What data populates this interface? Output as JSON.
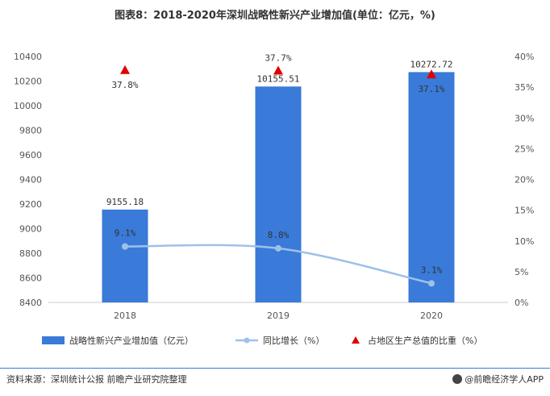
{
  "title": "图表8：2018-2020年深圳战略性新兴产业增加值(单位：亿元，%)",
  "source": "资料来源：深圳统计公报 前瞻产业研究院整理",
  "credit": "@前瞻经济学人APP",
  "colors": {
    "bar": "#3a7ad8",
    "line": "#9ec1e8",
    "marker": "#e00000",
    "grid": "#d9d9d9",
    "divider": "#3a7ad8"
  },
  "chart_data": {
    "type": "bar",
    "categories": [
      "2018",
      "2019",
      "2020"
    ],
    "series": [
      {
        "name": "战略性新兴产业增加值（亿元）",
        "type": "bar",
        "axis": "left",
        "values": [
          9155.18,
          10155.51,
          10272.72
        ],
        "labels": [
          "9155.18",
          "10155.51",
          "10272.72"
        ]
      },
      {
        "name": "同比增长（%）",
        "type": "line",
        "axis": "right",
        "values": [
          9.1,
          8.8,
          3.1
        ],
        "labels": [
          "9.1%",
          "8.8%",
          "3.1%"
        ]
      },
      {
        "name": "占地区生产总值的比重（%）",
        "type": "scatter",
        "marker": "triangle",
        "axis": "right",
        "values": [
          37.8,
          37.7,
          37.1
        ],
        "labels": [
          "37.8%",
          "37.7%",
          "37.1%"
        ]
      }
    ],
    "left_axis": {
      "min": 8400,
      "max": 10400,
      "ticks": [
        "8400",
        "8600",
        "8800",
        "9000",
        "9200",
        "9400",
        "9600",
        "9800",
        "10000",
        "10200",
        "10400"
      ]
    },
    "right_axis": {
      "min": 0,
      "max": 40,
      "ticks": [
        "0%",
        "5%",
        "10%",
        "15%",
        "20%",
        "25%",
        "30%",
        "35%",
        "40%"
      ]
    },
    "legend_position": "bottom",
    "grid": false
  }
}
